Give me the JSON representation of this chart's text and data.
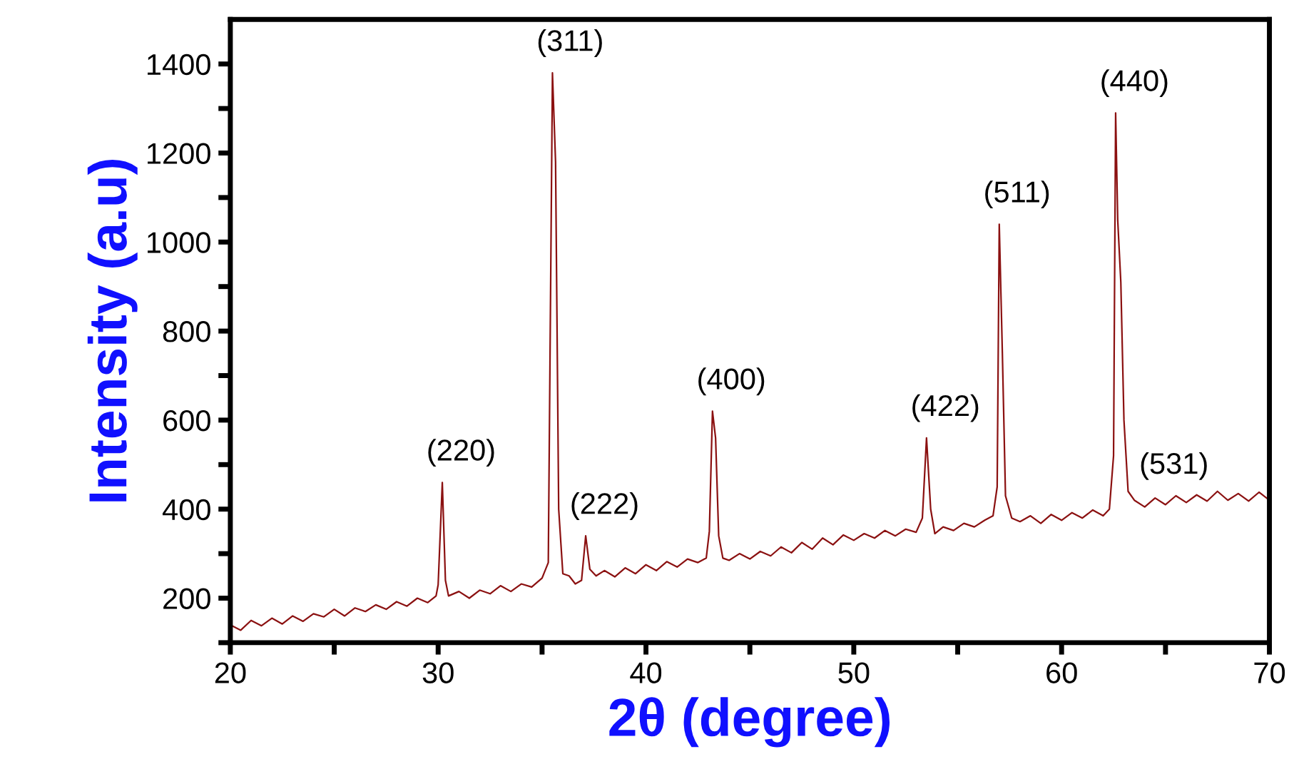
{
  "chart_data": {
    "type": "line",
    "xlabel": "2θ (degree)",
    "ylabel": "Intensity (a.u)",
    "xlim": [
      20,
      70
    ],
    "ylim": [
      100,
      1500
    ],
    "xticks": [
      20,
      {
        "value": 25,
        "label": null
      },
      30,
      {
        "value": 35,
        "label": null
      },
      40,
      {
        "value": 45,
        "label": null
      },
      50,
      {
        "value": 55,
        "label": null
      },
      60,
      {
        "value": 65,
        "label": null
      },
      70
    ],
    "yticks": [
      {
        "value": 100,
        "label": null
      },
      200,
      {
        "value": 300,
        "label": null
      },
      400,
      {
        "value": 500,
        "label": null
      },
      600,
      {
        "value": 700,
        "label": null
      },
      800,
      {
        "value": 900,
        "label": null
      },
      1000,
      {
        "value": 1100,
        "label": null
      },
      1200,
      {
        "value": 1300,
        "label": null
      },
      1400
    ],
    "grid": false,
    "legend": false,
    "marker": "none",
    "line_style": "solid",
    "series": [
      {
        "color": "#8b1111",
        "x": [
          20,
          20.5,
          21,
          21.5,
          22,
          22.5,
          23,
          23.5,
          24,
          24.5,
          25,
          25.5,
          26,
          26.5,
          27,
          27.5,
          28,
          28.5,
          29,
          29.5,
          29.9,
          30.0,
          30.2,
          30.35,
          30.5,
          31,
          31.5,
          32,
          32.5,
          33,
          33.5,
          34,
          34.5,
          35,
          35.3,
          35.5,
          35.65,
          35.8,
          36.0,
          36.3,
          36.6,
          36.9,
          37.1,
          37.3,
          37.6,
          38,
          38.5,
          39,
          39.5,
          40,
          40.5,
          41,
          41.5,
          42,
          42.5,
          42.9,
          43.05,
          43.2,
          43.35,
          43.5,
          43.7,
          44,
          44.5,
          45,
          45.5,
          46,
          46.5,
          47,
          47.5,
          48,
          48.5,
          49,
          49.5,
          50,
          50.5,
          51,
          51.5,
          52,
          52.5,
          53,
          53.3,
          53.5,
          53.7,
          53.9,
          54.3,
          54.8,
          55.3,
          55.8,
          56.3,
          56.7,
          56.9,
          57.0,
          57.15,
          57.3,
          57.6,
          58,
          58.5,
          59,
          59.5,
          60,
          60.5,
          61,
          61.5,
          62,
          62.3,
          62.5,
          62.6,
          62.7,
          62.85,
          63.0,
          63.2,
          63.5,
          64,
          64.5,
          65,
          65.5,
          66,
          66.5,
          67,
          67.5,
          68,
          68.5,
          69,
          69.5,
          70
        ],
        "values": [
          140,
          128,
          150,
          138,
          155,
          142,
          160,
          148,
          165,
          158,
          175,
          160,
          178,
          170,
          185,
          175,
          192,
          182,
          200,
          190,
          205,
          230,
          460,
          240,
          205,
          215,
          200,
          218,
          210,
          228,
          215,
          232,
          225,
          245,
          280,
          1380,
          1180,
          400,
          255,
          250,
          232,
          240,
          340,
          265,
          250,
          262,
          248,
          268,
          255,
          275,
          262,
          282,
          270,
          288,
          280,
          290,
          350,
          620,
          560,
          340,
          290,
          285,
          300,
          288,
          305,
          295,
          315,
          302,
          325,
          310,
          335,
          320,
          342,
          330,
          345,
          335,
          352,
          340,
          355,
          348,
          380,
          560,
          400,
          345,
          360,
          352,
          368,
          360,
          375,
          385,
          450,
          1040,
          750,
          430,
          380,
          372,
          385,
          368,
          388,
          375,
          392,
          380,
          398,
          385,
          400,
          520,
          1290,
          1050,
          910,
          600,
          440,
          420,
          405,
          425,
          410,
          430,
          415,
          432,
          418,
          440,
          420,
          435,
          418,
          438,
          420
        ]
      }
    ],
    "annotations": [
      {
        "text": "(220)",
        "x": 30.2,
        "y": 460
      },
      {
        "text": "(311)",
        "x": 35.5,
        "y": 1380
      },
      {
        "text": "(222)",
        "x": 37.1,
        "y": 340
      },
      {
        "text": "(400)",
        "x": 43.2,
        "y": 620
      },
      {
        "text": "(422)",
        "x": 53.5,
        "y": 560
      },
      {
        "text": "(511)",
        "x": 57.0,
        "y": 1040
      },
      {
        "text": "(440)",
        "x": 62.6,
        "y": 1290
      },
      {
        "text": "(531)",
        "x": 64.5,
        "y": 430
      }
    ]
  }
}
